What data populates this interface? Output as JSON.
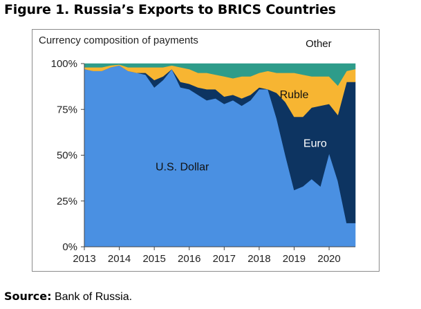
{
  "figure": {
    "title": "Figure 1. Russia’s Exports to BRICS Countries",
    "source_label": "Source:",
    "source_text": "Bank of Russia."
  },
  "chart_data": {
    "type": "area",
    "title": "Currency composition of payments",
    "xlabel": "",
    "ylabel": "",
    "ylim": [
      0,
      100
    ],
    "yticks": [
      "0%",
      "25%",
      "50%",
      "75%",
      "100%"
    ],
    "ytick_values": [
      0,
      25,
      50,
      75,
      100
    ],
    "xticks": [
      "2013",
      "2014",
      "2015",
      "2016",
      "2017",
      "2018",
      "2019",
      "2020"
    ],
    "xtick_values": [
      2013,
      2014,
      2015,
      2016,
      2017,
      2018,
      2019,
      2020
    ],
    "xlim": [
      2013,
      2020.75
    ],
    "stacked": true,
    "grid": false,
    "legend": "inline-labels",
    "x": [
      2013,
      2013.25,
      2013.5,
      2013.75,
      2014,
      2014.25,
      2014.5,
      2014.75,
      2015,
      2015.25,
      2015.5,
      2015.75,
      2016,
      2016.25,
      2016.5,
      2016.75,
      2017,
      2017.25,
      2017.5,
      2017.75,
      2018,
      2018.25,
      2018.5,
      2018.75,
      2019,
      2019.25,
      2019.5,
      2019.75,
      2020,
      2020.25,
      2020.5,
      2020.75
    ],
    "series": [
      {
        "name": "U.S. Dollar",
        "color": "#4a90e2",
        "values": [
          97,
          96,
          96,
          98,
          99,
          96,
          95,
          94,
          87,
          91,
          97,
          87,
          86,
          83,
          80,
          81,
          78,
          80,
          77,
          80,
          86,
          86,
          70,
          50,
          31,
          33,
          37,
          33,
          51,
          36,
          13,
          13
        ]
      },
      {
        "name": "Euro",
        "color": "#0d3461",
        "values": [
          0,
          0,
          0,
          0,
          0,
          0,
          0,
          1,
          4,
          2,
          0,
          3,
          3,
          4,
          6,
          5,
          4,
          3,
          4,
          3,
          1,
          0,
          14,
          29,
          40,
          38,
          39,
          44,
          27,
          36,
          77,
          77
        ]
      },
      {
        "name": "Ruble",
        "color": "#f7b532",
        "values": [
          1,
          2,
          2,
          1,
          0.5,
          2,
          3,
          3,
          7,
          5,
          2,
          8,
          8,
          8,
          9,
          8,
          11,
          9,
          12,
          10,
          8,
          10,
          11,
          16,
          24,
          23,
          17,
          16,
          15,
          16,
          6,
          7
        ]
      },
      {
        "name": "Other",
        "color": "#2e9c8a",
        "values": [
          2,
          2,
          2,
          1,
          0.5,
          2,
          2,
          2,
          2,
          2,
          1,
          2,
          3,
          5,
          5,
          6,
          7,
          8,
          7,
          7,
          5,
          4,
          5,
          5,
          5,
          6,
          7,
          7,
          7,
          12,
          4,
          3
        ]
      }
    ],
    "annotations": [
      {
        "text": "U.S. Dollar",
        "series": "U.S. Dollar"
      },
      {
        "text": "Euro",
        "series": "Euro"
      },
      {
        "text": "Ruble",
        "series": "Ruble"
      },
      {
        "text": "Other",
        "series": "Other"
      }
    ]
  }
}
